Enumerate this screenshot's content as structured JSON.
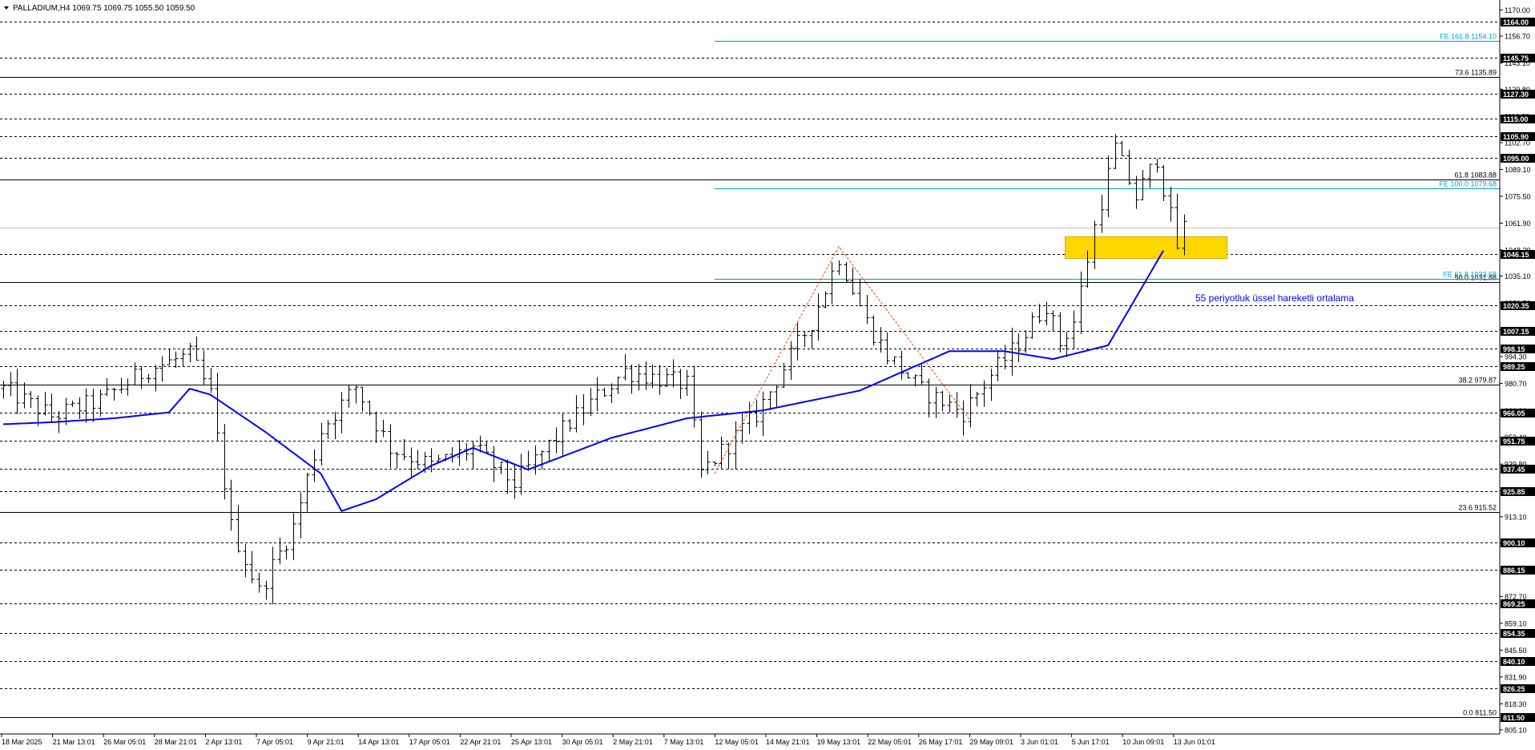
{
  "chart_data": {
    "type": "candlestick",
    "symbol_header": "PALLADIUM,H4  1069.75 1069.75 1055.50 1059.50",
    "ohlc_last": {
      "open": 1069.75,
      "high": 1069.75,
      "low": 1055.5,
      "close": 1059.5
    },
    "ylim": [
      803.0,
      1175.0
    ],
    "y_ticks": [
      "1170.00",
      "1156.70",
      "1143.10",
      "1129.80",
      "1116.20",
      "1102.70",
      "1089.10",
      "1075.50",
      "1061.90",
      "1048.30",
      "1035.10",
      "1021.50",
      "1007.90",
      "994.30",
      "980.70",
      "966.90",
      "953.40",
      "939.80",
      "926.20",
      "913.10",
      "899.50",
      "886.00",
      "872.70",
      "859.10",
      "845.50",
      "831.90",
      "818.30",
      "805.10"
    ],
    "x_labels": [
      "18 Mar 2025",
      "21 Mar 13:01",
      "26 Mar 05:01",
      "28 Mar 21:01",
      "2 Apr 13:01",
      "7 Apr 05:01",
      "9 Apr 21:01",
      "14 Apr 13:01",
      "17 Apr 05:01",
      "22 Apr 21:01",
      "25 Apr 13:01",
      "30 Apr 05:01",
      "2 May 21:01",
      "7 May 13:01",
      "12 May 05:01",
      "14 May 21:01",
      "19 May 13:01",
      "22 May 05:01",
      "26 May 17:01",
      "29 May 09:01",
      "3 Jun 01:01",
      "5 Jun 17:01",
      "10 Jun 09:01",
      "13 Jun 01:01"
    ],
    "price_levels": [
      {
        "value": 1164.0,
        "label": "1164.00"
      },
      {
        "value": 1145.75,
        "label": "1145.75"
      },
      {
        "value": 1127.3,
        "label": "1127.30"
      },
      {
        "value": 1115.0,
        "label": "1115.00"
      },
      {
        "value": 1105.9,
        "label": "1105.90"
      },
      {
        "value": 1095.0,
        "label": "1095.00"
      },
      {
        "value": 1046.15,
        "label": "1046.15"
      },
      {
        "value": 1020.35,
        "label": "1020.35"
      },
      {
        "value": 1007.15,
        "label": "1007.15"
      },
      {
        "value": 998.15,
        "label": "998.15"
      },
      {
        "value": 989.25,
        "label": "989.25"
      },
      {
        "value": 966.05,
        "label": "966.05"
      },
      {
        "value": 951.75,
        "label": "951.75"
      },
      {
        "value": 937.45,
        "label": "937.45"
      },
      {
        "value": 925.85,
        "label": "925.85"
      },
      {
        "value": 900.1,
        "label": "900.10"
      },
      {
        "value": 886.15,
        "label": "886.15"
      },
      {
        "value": 869.25,
        "label": "869.25"
      },
      {
        "value": 854.35,
        "label": "854.35"
      },
      {
        "value": 840.1,
        "label": "840.10"
      },
      {
        "value": 826.25,
        "label": "826.25"
      },
      {
        "value": 811.5,
        "label": "811.50"
      }
    ],
    "current_price": {
      "value": 1059.5,
      "label": "1059.50"
    },
    "fib_retracement": [
      {
        "value": 1135.89,
        "label": "73.6 1135.89"
      },
      {
        "value": 1083.88,
        "label": "61.8 1083.88"
      },
      {
        "value": 1031.88,
        "label": "50.0 1031.88"
      },
      {
        "value": 979.87,
        "label": "38.2 979.87"
      },
      {
        "value": 915.52,
        "label": "23.6 915.52"
      },
      {
        "value": 811.5,
        "label": "0.0 811.50"
      }
    ],
    "fib_expansion": [
      {
        "value": 1154.1,
        "label": "FE 161.8 1154.10"
      },
      {
        "value": 1079.68,
        "label": "FE 100.0 1079.68"
      },
      {
        "value": 1033.68,
        "label": "FE 61.8 1033.68"
      }
    ],
    "ema_label": "55 periyotluk üssel hareketli ortalama",
    "ema_key_points": [
      [
        0,
        960
      ],
      [
        7,
        961
      ],
      [
        16,
        963
      ],
      [
        24,
        966
      ],
      [
        27,
        978
      ],
      [
        30,
        975
      ],
      [
        38,
        956
      ],
      [
        46,
        935
      ],
      [
        49,
        916
      ],
      [
        54,
        922
      ],
      [
        62,
        939
      ],
      [
        68,
        948
      ],
      [
        76,
        937
      ],
      [
        88,
        953
      ],
      [
        99,
        963
      ],
      [
        110,
        967
      ],
      [
        124,
        977
      ],
      [
        137,
        997
      ],
      [
        145,
        997
      ],
      [
        152,
        993
      ],
      [
        160,
        1000
      ],
      [
        168,
        1048
      ]
    ],
    "price_key_points": [
      [
        0,
        978
      ],
      [
        7,
        964
      ],
      [
        14,
        972
      ],
      [
        21,
        988
      ],
      [
        27,
        995
      ],
      [
        30,
        975
      ],
      [
        33,
        908
      ],
      [
        37,
        875
      ],
      [
        42,
        908
      ],
      [
        46,
        957
      ],
      [
        51,
        979
      ],
      [
        56,
        948
      ],
      [
        62,
        939
      ],
      [
        68,
        948
      ],
      [
        74,
        930
      ],
      [
        82,
        961
      ],
      [
        90,
        987
      ],
      [
        99,
        980
      ],
      [
        101,
        935
      ],
      [
        109,
        965
      ],
      [
        117,
        1012
      ],
      [
        121,
        1045
      ],
      [
        125,
        1012
      ],
      [
        128,
        995
      ],
      [
        133,
        977
      ],
      [
        139,
        966
      ],
      [
        143,
        985
      ],
      [
        147,
        1001
      ],
      [
        151,
        1021
      ],
      [
        153,
        1001
      ],
      [
        155,
        1012
      ],
      [
        158,
        1060
      ],
      [
        161,
        1100
      ],
      [
        164,
        1075
      ],
      [
        167,
        1095
      ],
      [
        170,
        1050
      ],
      [
        171,
        1060
      ]
    ],
    "zigzag_points": [
      [
        103,
        935
      ],
      [
        121,
        1050
      ],
      [
        140,
        962
      ]
    ],
    "highlight_zone": [
      1044.0,
      1055.0
    ]
  },
  "colors": {
    "candle": "#000000",
    "ema": "#0000ff",
    "fib_expansion": "#00a0d0",
    "zigzag": "#ff4500",
    "highlight": "#ffd700",
    "level_line": "#000000",
    "current_line": "#c0c0c0",
    "axis": "#000000"
  },
  "icons": {
    "header": "triangle-down-icon"
  }
}
